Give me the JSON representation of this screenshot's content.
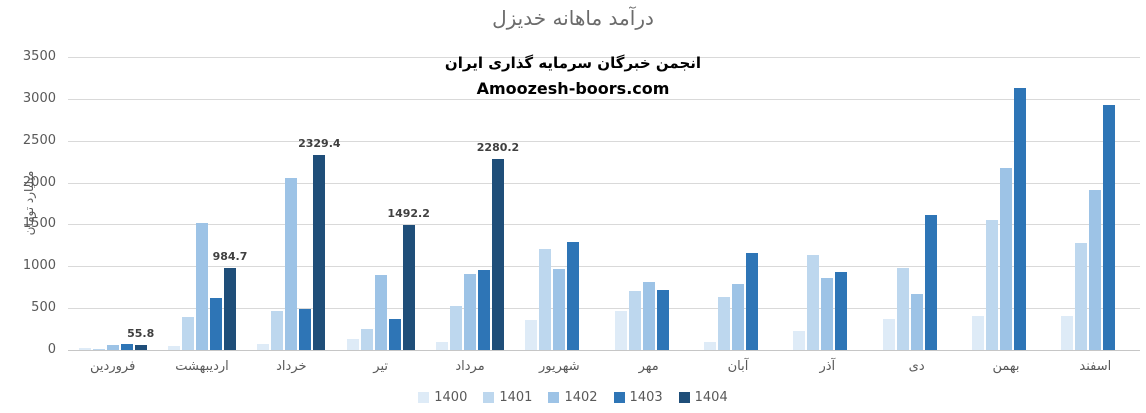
{
  "chart": {
    "title": "درآمد ماهانه خدیزل"
  },
  "annotation": {
    "line1": "انجمن خبرگان سرمایه گذاری ایران",
    "line2": "Amoozesh-boors.com"
  },
  "chart_data": {
    "type": "bar",
    "title": "درآمد ماهانه خدیزل",
    "xlabel": "",
    "ylabel": "میلیارد تومان",
    "ylim": [
      0,
      3500
    ],
    "ytick_step": 500,
    "grid": true,
    "legend_position": "bottom",
    "labeled_series": "1404",
    "categories": [
      "فروردین",
      "اردیبهشت",
      "خرداد",
      "تیر",
      "مرداد",
      "شهریور",
      "مهر",
      "آبان",
      "آذر",
      "دی",
      "بهمن",
      "اسفند"
    ],
    "series": [
      {
        "name": "1400",
        "color": "#DEEBF7",
        "values": [
          30,
          50,
          75,
          130,
          95,
          355,
          470,
          90,
          230,
          370,
          410,
          405
        ]
      },
      {
        "name": "1401",
        "color": "#BDD7EE",
        "values": [
          15,
          390,
          470,
          250,
          530,
          1210,
          710,
          635,
          1130,
          975,
          1550,
          1275
        ]
      },
      {
        "name": "1402",
        "color": "#9DC3E6",
        "values": [
          60,
          1520,
          2060,
          900,
          905,
          970,
          810,
          785,
          855,
          665,
          2180,
          1915
        ]
      },
      {
        "name": "1403",
        "color": "#2E75B6",
        "values": [
          75,
          620,
          490,
          370,
          950,
          1290,
          720,
          1155,
          930,
          1610,
          3130,
          2925
        ]
      },
      {
        "name": "1404",
        "color": "#1F4E79",
        "values": [
          55.8,
          984.7,
          2329.4,
          1492.2,
          2280.2,
          null,
          null,
          null,
          null,
          null,
          null,
          null
        ]
      }
    ]
  },
  "colors": {
    "title_text": "#6b6b6b",
    "axis_text": "#595959",
    "gridline": "#d9d9d9",
    "axis_line": "#c6c6c6",
    "data_label": "#404040"
  }
}
